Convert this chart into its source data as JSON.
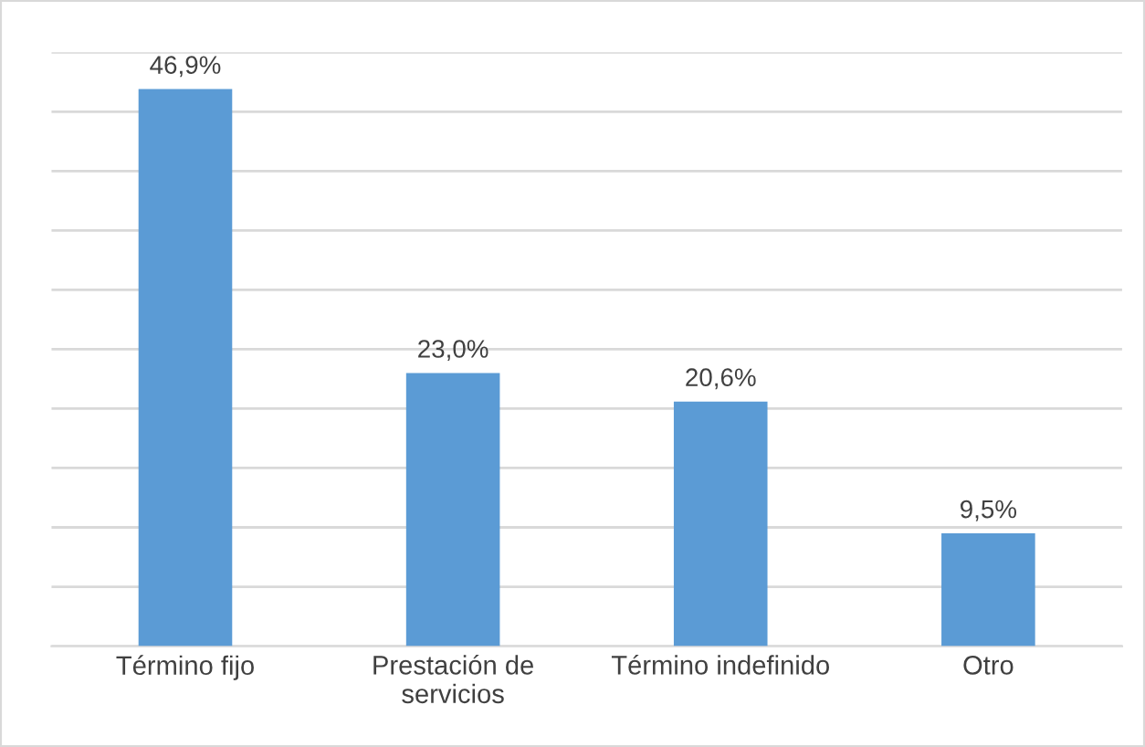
{
  "chart_data": {
    "type": "bar",
    "categories": [
      "Término fijo",
      "Prestación de\nservicios",
      "Término indefinido",
      "Otro"
    ],
    "values": [
      46.9,
      23.0,
      20.6,
      9.5
    ],
    "value_labels": [
      "46,9%",
      "23,0%",
      "20,6%",
      "9,5%"
    ],
    "color": "#5b9bd5",
    "ylim": [
      0,
      50
    ],
    "yticks": [
      {
        "value": 0,
        "label": null
      },
      {
        "value": 5,
        "label": null
      },
      {
        "value": 10,
        "label": null
      },
      {
        "value": 15,
        "label": null
      },
      {
        "value": 20,
        "label": null
      },
      {
        "value": 25,
        "label": null
      },
      {
        "value": 30,
        "label": null
      },
      {
        "value": 35,
        "label": null
      },
      {
        "value": 40,
        "label": null
      },
      {
        "value": 45,
        "label": null
      },
      {
        "value": 50,
        "label": null
      }
    ],
    "tick_labels": "x",
    "grid": "y",
    "legend": false
  }
}
